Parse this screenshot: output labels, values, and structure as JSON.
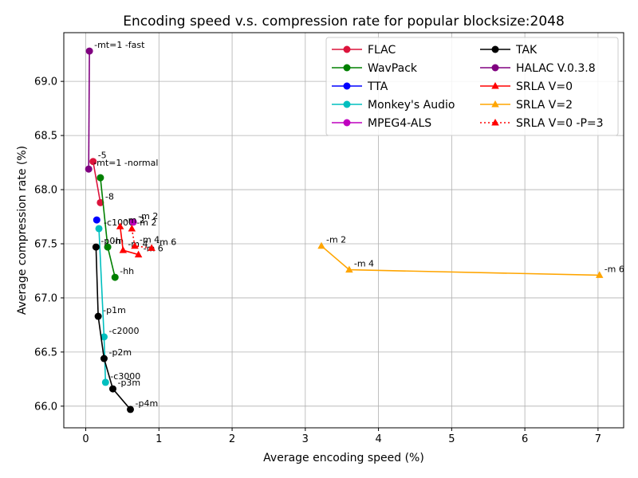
{
  "chart_data": {
    "type": "line",
    "title": "Encoding speed v.s. compression rate for popular blocksize:2048",
    "xlabel": "Average encoding speed (%)",
    "ylabel": "Average compression rate (%)",
    "xlim": [
      -0.3,
      7.35
    ],
    "ylim": [
      65.8,
      69.45
    ],
    "xticks": [
      0,
      1,
      2,
      3,
      4,
      5,
      6,
      7
    ],
    "yticks": [
      66.0,
      66.5,
      67.0,
      67.5,
      68.0,
      68.5,
      69.0
    ],
    "xtick_labels": [
      "0",
      "1",
      "2",
      "3",
      "4",
      "5",
      "6",
      "7"
    ],
    "ytick_labels": [
      "66.0",
      "66.5",
      "67.0",
      "67.5",
      "68.0",
      "68.5",
      "69.0"
    ],
    "grid": true,
    "legend_position": "top-right",
    "legend_columns": 2,
    "series": [
      {
        "name": "FLAC",
        "color": "#dc143c",
        "marker": "circle",
        "linestyle": "solid",
        "points": [
          {
            "x": 0.1,
            "y": 68.26,
            "label": "-5"
          },
          {
            "x": 0.2,
            "y": 67.88,
            "label": "-8"
          }
        ]
      },
      {
        "name": "WavPack",
        "color": "#008000",
        "marker": "circle",
        "linestyle": "solid",
        "points": [
          {
            "x": 0.2,
            "y": 68.11,
            "label": ""
          },
          {
            "x": 0.3,
            "y": 67.47,
            "label": "-h"
          },
          {
            "x": 0.4,
            "y": 67.19,
            "label": "-hh"
          }
        ]
      },
      {
        "name": "TTA",
        "color": "#0000ff",
        "marker": "circle",
        "linestyle": "solid",
        "points": [
          {
            "x": 0.15,
            "y": 67.72,
            "label": ""
          }
        ]
      },
      {
        "name": "Monkey's Audio",
        "color": "#00bfbf",
        "marker": "circle",
        "linestyle": "solid",
        "points": [
          {
            "x": 0.18,
            "y": 67.64,
            "label": "-c1000"
          },
          {
            "x": 0.25,
            "y": 66.64,
            "label": "-c2000"
          },
          {
            "x": 0.27,
            "y": 66.22,
            "label": "-c3000"
          }
        ]
      },
      {
        "name": "MPEG4-ALS",
        "color": "#bf00bf",
        "marker": "circle",
        "linestyle": "solid",
        "points": [
          {
            "x": 0.65,
            "y": 67.7,
            "label": "-m 2"
          }
        ]
      },
      {
        "name": "TAK",
        "color": "#000000",
        "marker": "circle",
        "linestyle": "solid",
        "points": [
          {
            "x": 0.14,
            "y": 67.47,
            "label": "-p0m"
          },
          {
            "x": 0.17,
            "y": 66.83,
            "label": "-p1m"
          },
          {
            "x": 0.25,
            "y": 66.44,
            "label": "-p2m"
          },
          {
            "x": 0.37,
            "y": 66.16,
            "label": "-p3m"
          },
          {
            "x": 0.61,
            "y": 65.97,
            "label": "-p4m"
          }
        ]
      },
      {
        "name": "HALAC V.0.3.8",
        "color": "#800080",
        "marker": "circle",
        "linestyle": "solid",
        "points": [
          {
            "x": 0.05,
            "y": 69.28,
            "label": "-mt=1 -fast"
          },
          {
            "x": 0.04,
            "y": 68.19,
            "label": "-mt=1 -normal"
          }
        ]
      },
      {
        "name": "SRLA V=0",
        "color": "#ff0000",
        "marker": "triangle",
        "linestyle": "solid",
        "points": [
          {
            "x": 0.47,
            "y": 67.66,
            "label": "-m 2"
          },
          {
            "x": 0.51,
            "y": 67.44,
            "label": "-m 4"
          },
          {
            "x": 0.72,
            "y": 67.4,
            "label": "-m 6"
          }
        ]
      },
      {
        "name": "SRLA V=2",
        "color": "#ffa500",
        "marker": "triangle",
        "linestyle": "solid",
        "points": [
          {
            "x": 3.22,
            "y": 67.48,
            "label": "-m 2"
          },
          {
            "x": 3.6,
            "y": 67.26,
            "label": "-m 4"
          },
          {
            "x": 7.02,
            "y": 67.21,
            "label": "-m 6"
          }
        ]
      },
      {
        "name": "SRLA V=0 -P=3",
        "color": "#ff0000",
        "marker": "triangle",
        "linestyle": "dotted",
        "points": [
          {
            "x": 0.63,
            "y": 67.64,
            "label": "-m 2"
          },
          {
            "x": 0.67,
            "y": 67.48,
            "label": "-m 4"
          },
          {
            "x": 0.9,
            "y": 67.46,
            "label": "-m 6"
          }
        ]
      }
    ]
  }
}
